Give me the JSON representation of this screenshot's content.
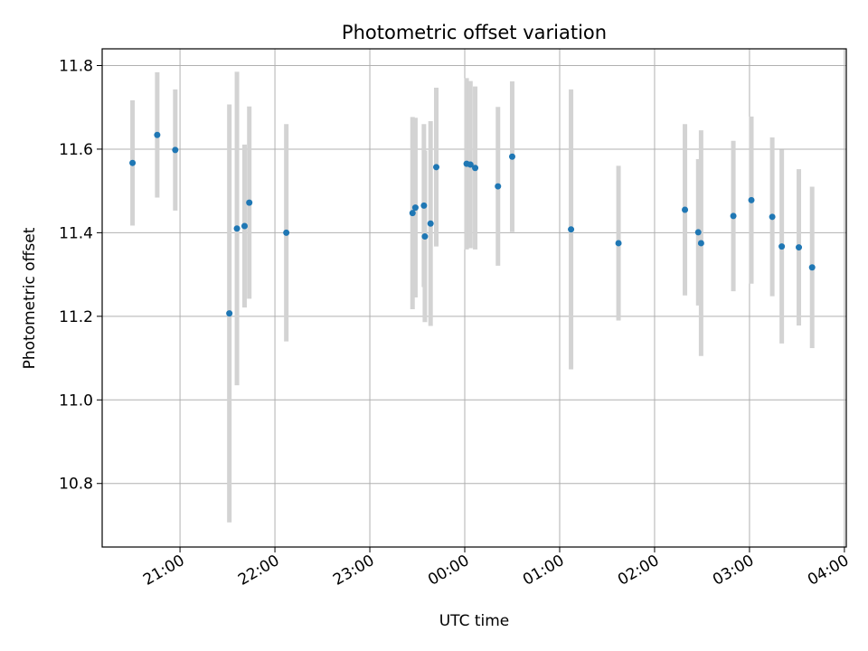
{
  "chart_data": {
    "type": "scatter",
    "title": "Photometric offset variation",
    "xlabel": "UTC time",
    "ylabel": "Photometric offset",
    "x_unit": "hours",
    "xlim": [
      20.18,
      28.02
    ],
    "ylim": [
      10.648,
      11.84
    ],
    "grid": true,
    "point_color": "#1f77b4",
    "errorbar_color": "#d3d3d3",
    "x_ticks": [
      {
        "value": 21,
        "label": "21:00"
      },
      {
        "value": 22,
        "label": "22:00"
      },
      {
        "value": 23,
        "label": "23:00"
      },
      {
        "value": 24,
        "label": "00:00"
      },
      {
        "value": 25,
        "label": "01:00"
      },
      {
        "value": 26,
        "label": "02:00"
      },
      {
        "value": 27,
        "label": "03:00"
      },
      {
        "value": 28,
        "label": "04:00"
      }
    ],
    "y_ticks": [
      {
        "value": 10.8,
        "label": "10.8"
      },
      {
        "value": 11.0,
        "label": "11.0"
      },
      {
        "value": 11.2,
        "label": "11.2"
      },
      {
        "value": 11.4,
        "label": "11.4"
      },
      {
        "value": 11.6,
        "label": "11.6"
      },
      {
        "value": 11.8,
        "label": "11.8"
      }
    ],
    "points": [
      {
        "x": 20.5,
        "y": 11.567,
        "err": 0.15
      },
      {
        "x": 20.76,
        "y": 11.634,
        "err": 0.15
      },
      {
        "x": 20.95,
        "y": 11.598,
        "err": 0.145
      },
      {
        "x": 21.52,
        "y": 11.207,
        "err": 0.5
      },
      {
        "x": 21.6,
        "y": 11.41,
        "err": 0.375
      },
      {
        "x": 21.68,
        "y": 11.416,
        "err": 0.195
      },
      {
        "x": 21.73,
        "y": 11.472,
        "err": 0.23
      },
      {
        "x": 22.12,
        "y": 11.4,
        "err": 0.26
      },
      {
        "x": 23.45,
        "y": 11.447,
        "err": 0.23
      },
      {
        "x": 23.48,
        "y": 11.46,
        "err": 0.215
      },
      {
        "x": 23.57,
        "y": 11.465,
        "err": 0.195
      },
      {
        "x": 23.58,
        "y": 11.391,
        "err": 0.205
      },
      {
        "x": 23.64,
        "y": 11.422,
        "err": 0.245
      },
      {
        "x": 23.7,
        "y": 11.557,
        "err": 0.19
      },
      {
        "x": 24.02,
        "y": 11.565,
        "err": 0.205
      },
      {
        "x": 24.06,
        "y": 11.563,
        "err": 0.2
      },
      {
        "x": 24.11,
        "y": 11.555,
        "err": 0.195
      },
      {
        "x": 24.35,
        "y": 11.511,
        "err": 0.19
      },
      {
        "x": 24.5,
        "y": 11.582,
        "err": 0.18
      },
      {
        "x": 25.12,
        "y": 11.408,
        "err": 0.335
      },
      {
        "x": 25.62,
        "y": 11.375,
        "err": 0.185
      },
      {
        "x": 26.32,
        "y": 11.455,
        "err": 0.205
      },
      {
        "x": 26.46,
        "y": 11.401,
        "err": 0.175
      },
      {
        "x": 26.49,
        "y": 11.375,
        "err": 0.27
      },
      {
        "x": 26.83,
        "y": 11.44,
        "err": 0.18
      },
      {
        "x": 27.02,
        "y": 11.478,
        "err": 0.2
      },
      {
        "x": 27.24,
        "y": 11.438,
        "err": 0.19
      },
      {
        "x": 27.34,
        "y": 11.367,
        "err": 0.232
      },
      {
        "x": 27.52,
        "y": 11.365,
        "err": 0.187
      },
      {
        "x": 27.66,
        "y": 11.317,
        "err": 0.193
      }
    ]
  }
}
